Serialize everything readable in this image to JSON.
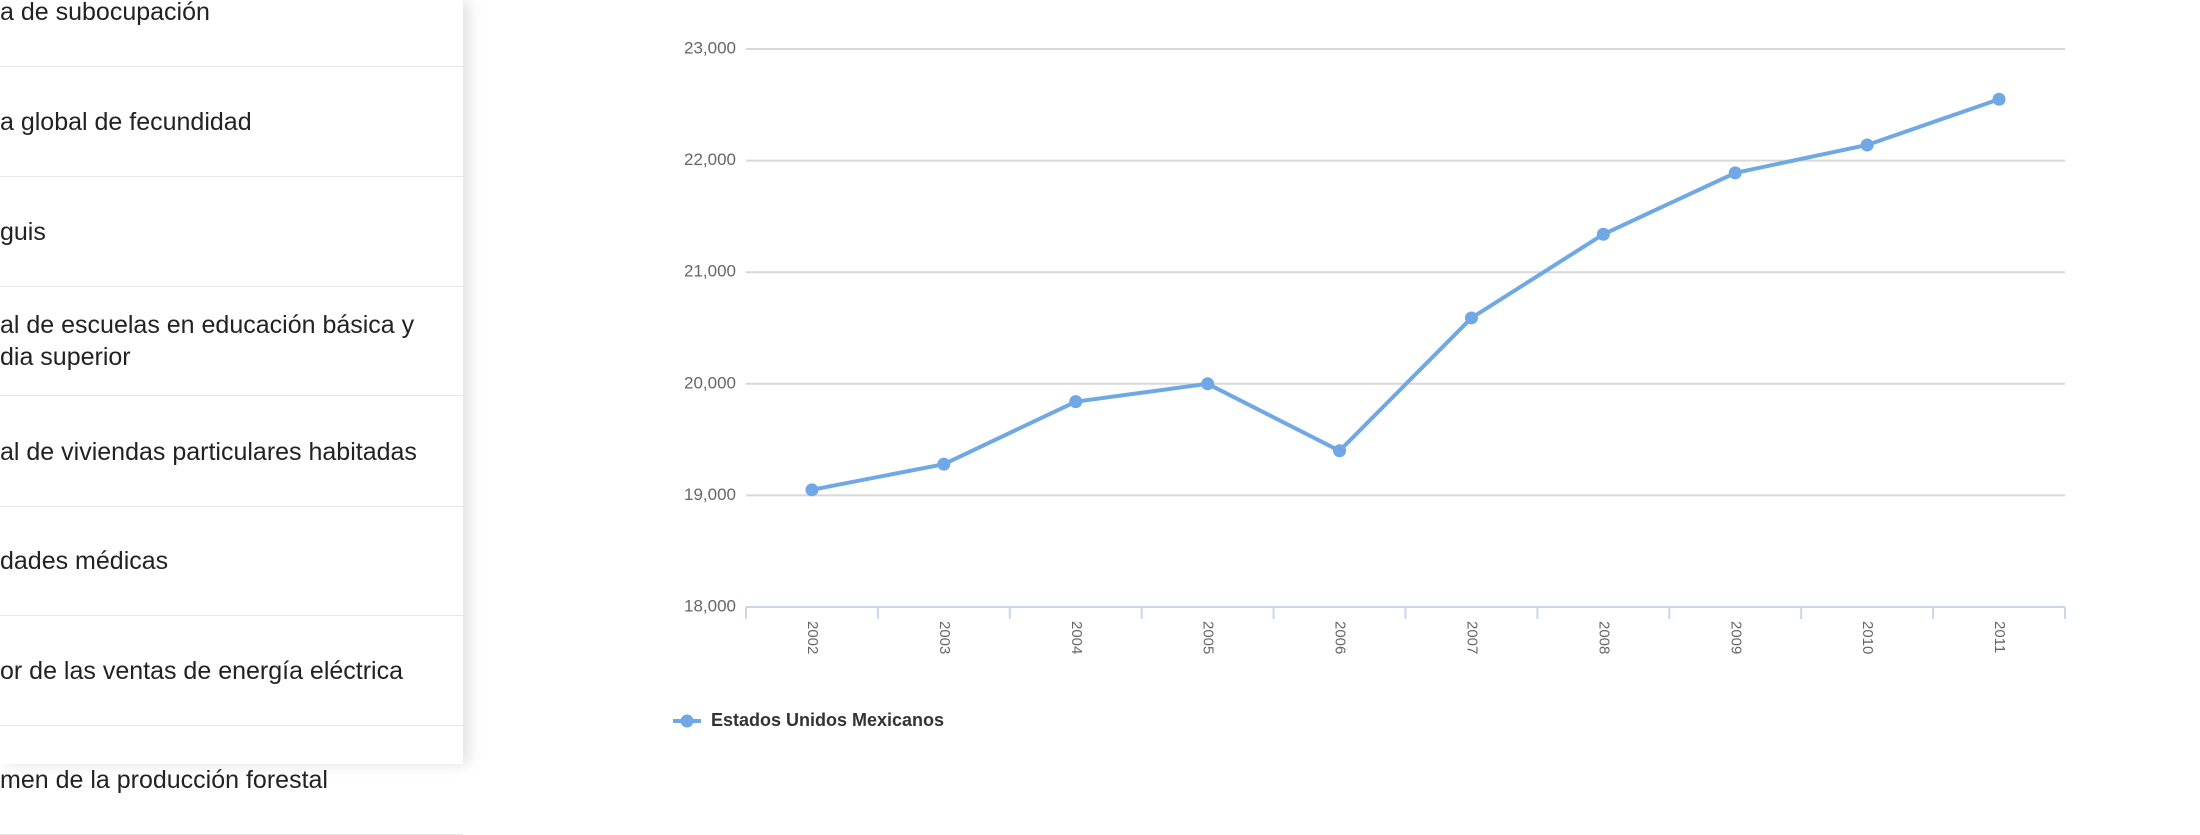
{
  "sidebar": {
    "items": [
      [
        "a de subocupación"
      ],
      [
        "a global de fecundidad"
      ],
      [
        "guis"
      ],
      [
        "al de escuelas en educación básica y",
        "dia superior"
      ],
      [
        "al de viviendas particulares habitadas"
      ],
      [
        "dades médicas"
      ],
      [
        "or de las ventas de energía eléctrica"
      ],
      [
        "men de la producción forestal"
      ]
    ]
  },
  "chart_data": {
    "type": "line",
    "categories": [
      "2002",
      "2003",
      "2004",
      "2005",
      "2006",
      "2007",
      "2008",
      "2009",
      "2010",
      "2011"
    ],
    "series": [
      {
        "name": "Estados Unidos Mexicanos",
        "color": "#6fa8e4",
        "values": [
          19050,
          19280,
          19840,
          20000,
          19400,
          20590,
          21340,
          21890,
          22140,
          22550
        ]
      }
    ],
    "ylim": [
      18000,
      23000
    ],
    "yticks": [
      {
        "value": 18000,
        "label": "18,000"
      },
      {
        "value": 19000,
        "label": "19,000"
      },
      {
        "value": 20000,
        "label": "20,000"
      },
      {
        "value": 21000,
        "label": "21,000"
      },
      {
        "value": 22000,
        "label": "22,000"
      },
      {
        "value": 23000,
        "label": "23,000"
      }
    ],
    "grid": true
  }
}
